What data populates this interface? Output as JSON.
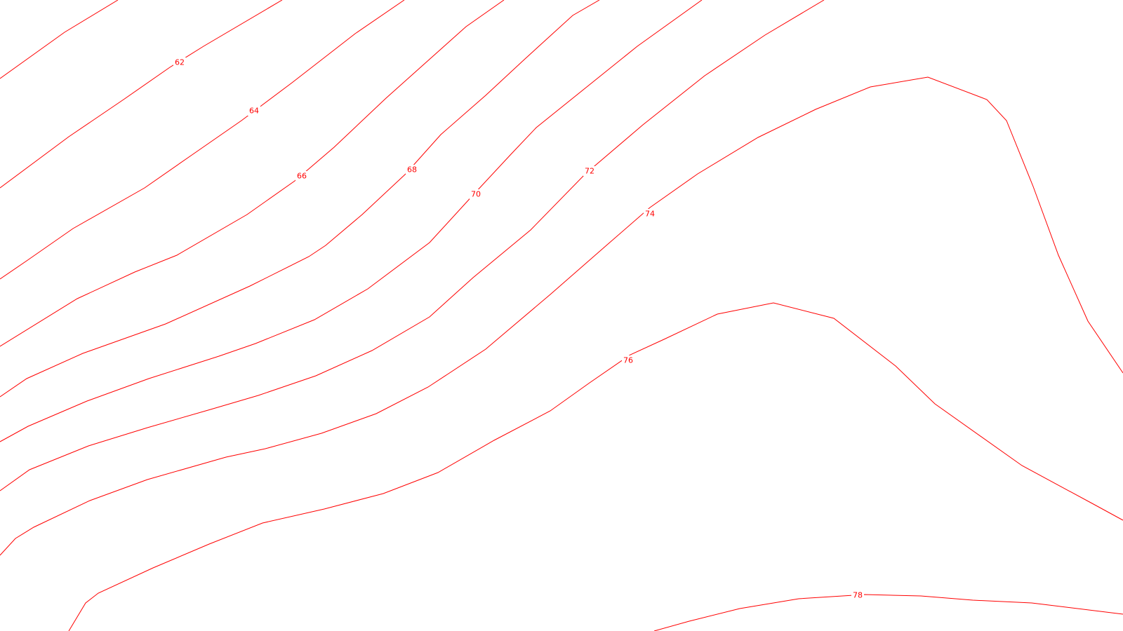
{
  "map": {
    "line_color": "#ff0000",
    "background_color": "#ffffff",
    "contour_labels": [
      "62",
      "64",
      "66",
      "68",
      "70",
      "72",
      "74",
      "76",
      "78"
    ]
  }
}
